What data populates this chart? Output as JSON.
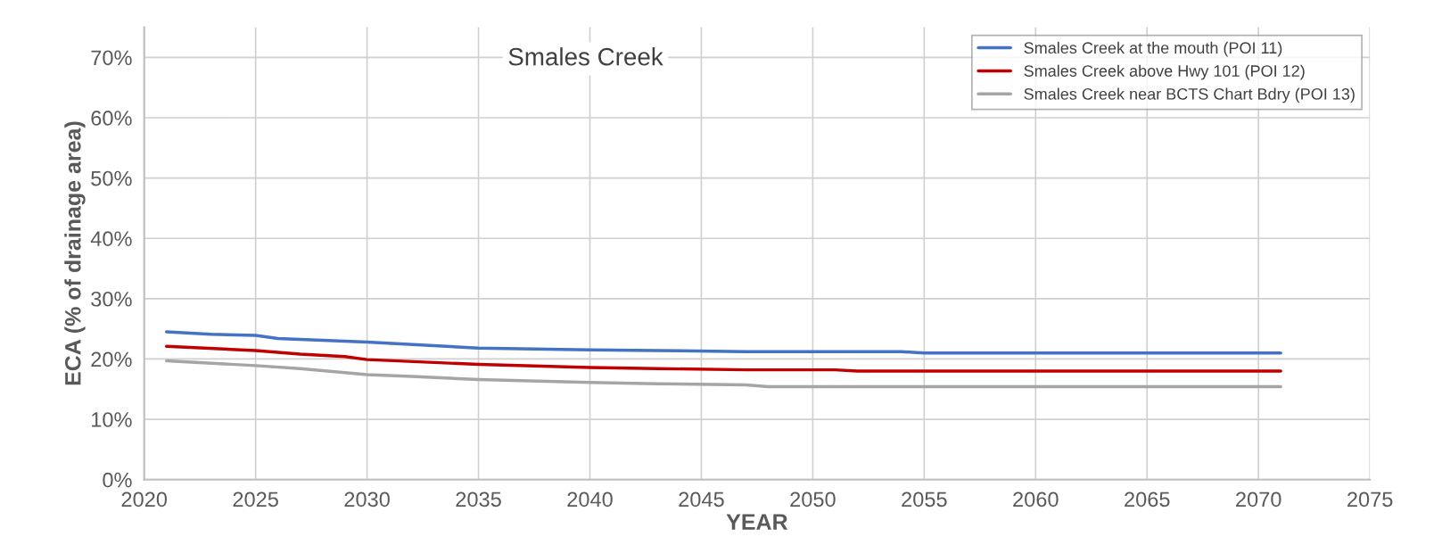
{
  "chart_data": {
    "type": "line",
    "title": "Smales Creek",
    "xlabel": "YEAR",
    "ylabel": "ECA (% of drainage area)",
    "xlim": [
      2020,
      2075
    ],
    "xticks": [
      2020,
      2025,
      2030,
      2035,
      2040,
      2045,
      2050,
      2055,
      2060,
      2065,
      2070,
      2075
    ],
    "ylim": [
      0,
      75
    ],
    "yticks": [
      {
        "value": 0,
        "label": "0%"
      },
      {
        "value": 10,
        "label": "10%"
      },
      {
        "value": 20,
        "label": "20%"
      },
      {
        "value": 30,
        "label": "30%"
      },
      {
        "value": 40,
        "label": "40%"
      },
      {
        "value": 50,
        "label": "50%"
      },
      {
        "value": 60,
        "label": "60%"
      },
      {
        "value": 70,
        "label": "70%"
      }
    ],
    "grid": true,
    "legend": "top right",
    "marker": "none",
    "line_style": "solid",
    "series": [
      {
        "name": "Smales Creek at the mouth (POI 11)",
        "color": "#4472c4",
        "x": [
          2021,
          2023,
          2025,
          2026,
          2030,
          2035,
          2040,
          2043,
          2047,
          2054,
          2055,
          2071
        ],
        "values": [
          24.5,
          24.1,
          23.9,
          23.4,
          22.8,
          21.8,
          21.5,
          21.4,
          21.2,
          21.2,
          21.0,
          21.0
        ]
      },
      {
        "name": "Smales Creek above Hwy 101 (POI 12)",
        "color": "#c00000",
        "x": [
          2021,
          2025,
          2027,
          2029,
          2030,
          2035,
          2040,
          2043,
          2047,
          2051,
          2052,
          2071
        ],
        "values": [
          22.1,
          21.4,
          20.8,
          20.4,
          19.9,
          19.1,
          18.6,
          18.4,
          18.2,
          18.2,
          18.0,
          18.0
        ]
      },
      {
        "name": "Smales Creek near BCTS Chart Bdry (POI 13)",
        "color": "#a5a5a5",
        "x": [
          2021,
          2025,
          2027,
          2030,
          2032,
          2035,
          2040,
          2043,
          2047,
          2048,
          2071
        ],
        "values": [
          19.7,
          18.9,
          18.4,
          17.4,
          17.1,
          16.6,
          16.1,
          15.9,
          15.7,
          15.4,
          15.4
        ]
      }
    ]
  }
}
